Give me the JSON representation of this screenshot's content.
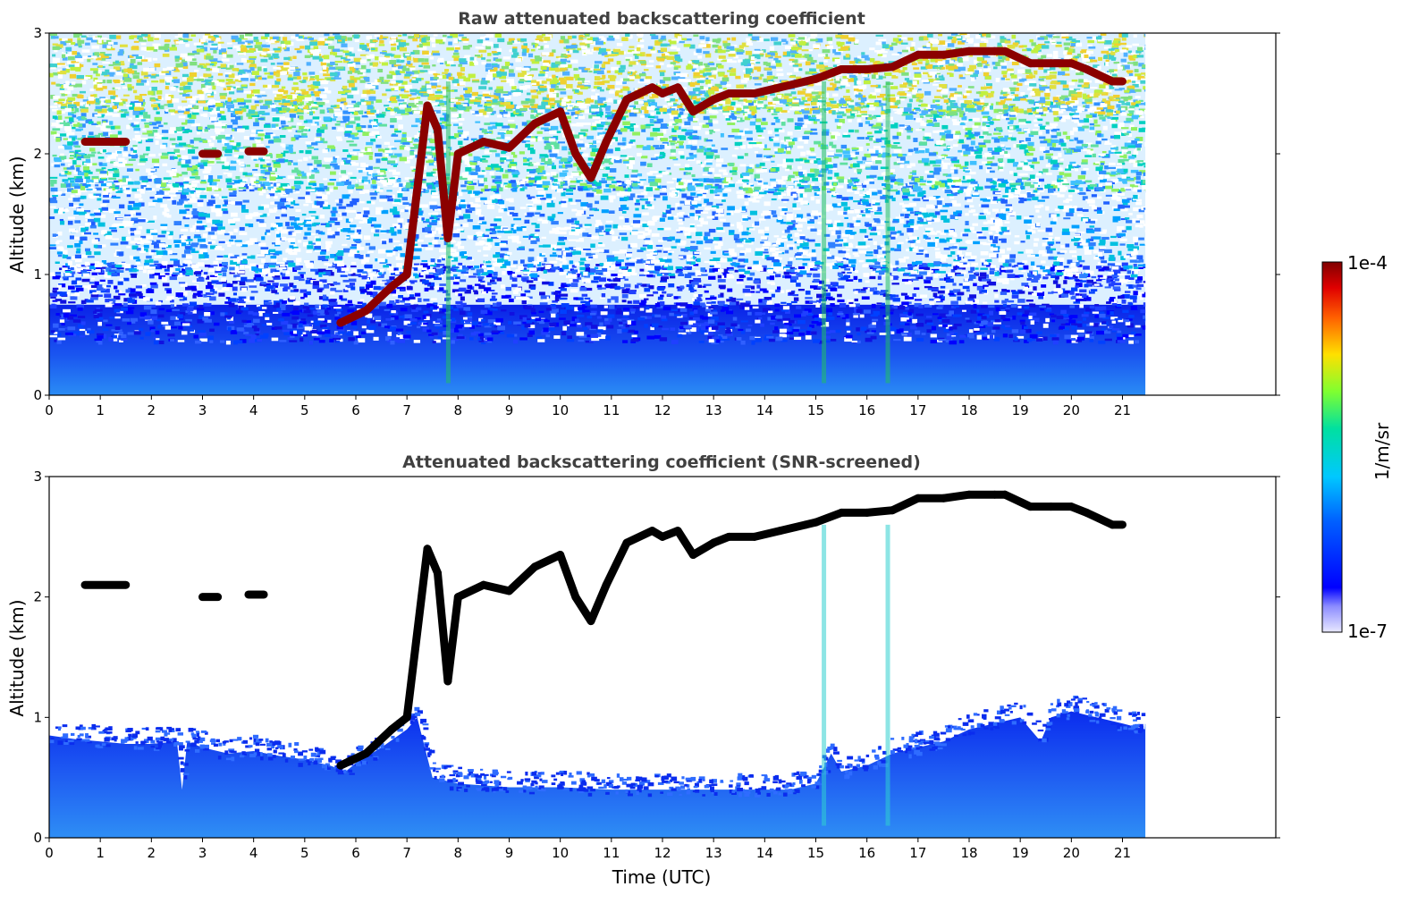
{
  "colors": {
    "cloud": "#8b0000",
    "cloud_screened": "#000000",
    "boundary_layer": "#1f6fff",
    "noise_scale": [
      "#ffffff",
      "#0000ff",
      "#00bfff",
      "#7fff00",
      "#ffd700",
      "#ff0000",
      "#7f0000"
    ]
  },
  "chart_data": [
    {
      "type": "heatmap",
      "title": "Raw attenuated backscattering coefficient",
      "xlabel": "",
      "ylabel": "Altitude (km)",
      "xlim": [
        0,
        24
      ],
      "ylim": [
        0,
        3
      ],
      "xticks": [
        "0",
        "1",
        "2",
        "3",
        "4",
        "5",
        "6",
        "7",
        "8",
        "9",
        "10",
        "11",
        "12",
        "13",
        "14",
        "15",
        "16",
        "17",
        "18",
        "19",
        "20",
        "21"
      ],
      "yticks": [
        "0",
        "1",
        "2",
        "3"
      ],
      "data_extent_x": [
        0,
        21.45
      ],
      "background": "noisy",
      "cloud_layer": {
        "x": [
          0.7,
          1.5,
          3.0,
          3.3,
          3.9,
          4.2,
          5.7,
          6.2,
          6.7,
          7.0,
          7.4,
          7.6,
          7.8,
          8.0,
          8.5,
          9.0,
          9.5,
          10.0,
          10.3,
          10.6,
          10.9,
          11.3,
          11.8,
          12.0,
          12.3,
          12.6,
          13.0,
          13.3,
          13.8,
          14.3,
          14.8,
          15.0,
          15.5,
          16.0,
          16.5,
          17.0,
          17.5,
          18.0,
          18.5,
          18.7,
          19.2,
          19.6,
          20.0,
          20.3,
          20.8,
          21.0
        ],
        "y": [
          2.1,
          2.1,
          2.0,
          2.0,
          2.02,
          2.02,
          0.6,
          0.7,
          0.9,
          1.0,
          2.4,
          2.2,
          1.3,
          2.0,
          2.1,
          2.05,
          2.25,
          2.35,
          2.0,
          1.8,
          2.1,
          2.45,
          2.55,
          2.5,
          2.55,
          2.35,
          2.45,
          2.5,
          2.5,
          2.55,
          2.6,
          2.62,
          2.7,
          2.7,
          2.72,
          2.82,
          2.82,
          2.85,
          2.85,
          2.85,
          2.75,
          2.75,
          2.75,
          2.7,
          2.6,
          2.6
        ]
      },
      "spikes_x": [
        7.8,
        15.15,
        16.4
      ]
    },
    {
      "type": "heatmap",
      "title": "Attenuated backscattering coefficient (SNR-screened)",
      "xlabel": "Time (UTC)",
      "ylabel": "Altitude (km)",
      "xlim": [
        0,
        24
      ],
      "ylim": [
        0,
        3
      ],
      "xticks": [
        "0",
        "1",
        "2",
        "3",
        "4",
        "5",
        "6",
        "7",
        "8",
        "9",
        "10",
        "11",
        "12",
        "13",
        "14",
        "15",
        "16",
        "17",
        "18",
        "19",
        "20",
        "21"
      ],
      "yticks": [
        "0",
        "1",
        "2",
        "3"
      ],
      "data_extent_x": [
        0,
        21.45
      ],
      "background": "screened",
      "boundary_layer_top": {
        "x": [
          0,
          0.5,
          1,
          1.5,
          2,
          2.5,
          2.6,
          2.7,
          3,
          3.5,
          4,
          4.5,
          5,
          5.5,
          5.8,
          6,
          6.5,
          7,
          7.2,
          7.5,
          8,
          9,
          10,
          11,
          12,
          13,
          14,
          14.5,
          15,
          15.3,
          15.5,
          16,
          16.5,
          17,
          17.5,
          18,
          18.5,
          19,
          19.4,
          19.6,
          20,
          20.5,
          21,
          21.45
        ],
        "y": [
          0.85,
          0.82,
          0.8,
          0.78,
          0.78,
          0.8,
          0.4,
          0.8,
          0.75,
          0.7,
          0.72,
          0.68,
          0.65,
          0.6,
          0.55,
          0.62,
          0.75,
          0.9,
          1.0,
          0.5,
          0.45,
          0.42,
          0.42,
          0.4,
          0.4,
          0.4,
          0.4,
          0.4,
          0.45,
          0.7,
          0.55,
          0.6,
          0.7,
          0.75,
          0.8,
          0.9,
          0.95,
          1.0,
          0.8,
          1.0,
          1.05,
          1.0,
          0.95,
          0.9
        ]
      },
      "cloud_layer": {
        "x": [
          0.7,
          1.5,
          3.0,
          3.3,
          3.9,
          4.2,
          5.7,
          6.2,
          6.7,
          7.0,
          7.4,
          7.6,
          7.8,
          8.0,
          8.5,
          9.0,
          9.5,
          10.0,
          10.3,
          10.6,
          10.9,
          11.3,
          11.8,
          12.0,
          12.3,
          12.6,
          13.0,
          13.3,
          13.8,
          14.3,
          14.8,
          15.0,
          15.5,
          16.0,
          16.5,
          17.0,
          17.5,
          18.0,
          18.5,
          18.7,
          19.2,
          19.6,
          20.0,
          20.3,
          20.8,
          21.0
        ],
        "y": [
          2.1,
          2.1,
          2.0,
          2.0,
          2.02,
          2.02,
          0.6,
          0.7,
          0.9,
          1.0,
          2.4,
          2.2,
          1.3,
          2.0,
          2.1,
          2.05,
          2.25,
          2.35,
          2.0,
          1.8,
          2.1,
          2.45,
          2.55,
          2.5,
          2.55,
          2.35,
          2.45,
          2.5,
          2.5,
          2.55,
          2.6,
          2.62,
          2.7,
          2.7,
          2.72,
          2.82,
          2.82,
          2.85,
          2.85,
          2.85,
          2.75,
          2.75,
          2.75,
          2.7,
          2.6,
          2.6
        ]
      },
      "spikes_x": [
        15.15,
        16.4
      ]
    }
  ],
  "colorbar": {
    "label": "1/m/sr",
    "max_label": "1e-4",
    "min_label": "1e-7"
  }
}
